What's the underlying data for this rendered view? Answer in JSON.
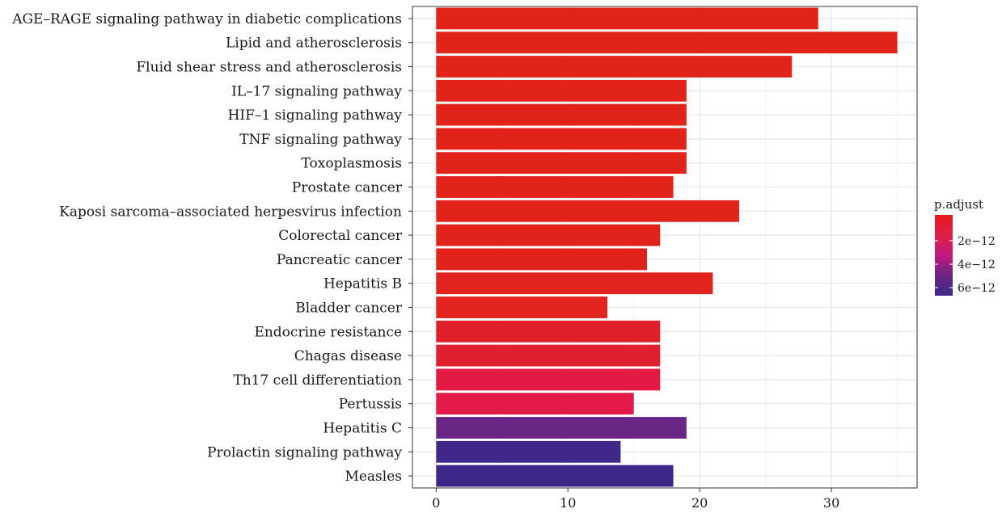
{
  "chart_data": {
    "type": "bar",
    "orientation": "horizontal",
    "categories": [
      "AGE–RAGE signaling pathway in diabetic complications",
      "Lipid and atherosclerosis",
      "Fluid shear stress and atherosclerosis",
      "IL–17 signaling pathway",
      "HIF–1 signaling pathway",
      "TNF signaling pathway",
      "Toxoplasmosis",
      "Prostate cancer",
      "Kaposi sarcoma–associated herpesvirus infection",
      "Colorectal cancer",
      "Pancreatic cancer",
      "Hepatitis B",
      "Bladder cancer",
      "Endocrine resistance",
      "Chagas disease",
      "Th17 cell differentiation",
      "Pertussis",
      "Hepatitis C",
      "Prolactin signaling pathway",
      "Measles"
    ],
    "values": [
      29,
      35,
      27,
      19,
      19,
      19,
      19,
      18,
      23,
      17,
      16,
      21,
      13,
      17,
      17,
      17,
      15,
      19,
      14,
      18
    ],
    "bar_colors": [
      "#e2231a",
      "#e2231a",
      "#e2231a",
      "#e2231a",
      "#e2231a",
      "#e2231a",
      "#e2231a",
      "#e2231a",
      "#e2231a",
      "#e2231c",
      "#e2231c",
      "#e2231e",
      "#e2231e",
      "#e11f2a",
      "#e01f30",
      "#e31b44",
      "#e41a48",
      "#6a2685",
      "#3f2888",
      "#3b2889"
    ],
    "xlim": [
      -1.8,
      36.5
    ],
    "x_ticks": [
      0,
      10,
      20,
      30
    ],
    "x_tick_labels": [
      "0",
      "10",
      "20",
      "30"
    ],
    "grid": true,
    "xlabel": "",
    "ylabel": "",
    "legend": {
      "title": "p.adjust",
      "placement": "right",
      "labels": [
        "2e−12",
        "4e−12",
        "6e−12"
      ],
      "gradient_colors": [
        "#e41a1c",
        "#e11f46",
        "#c0197a",
        "#6a2685",
        "#3b2889"
      ]
    }
  }
}
